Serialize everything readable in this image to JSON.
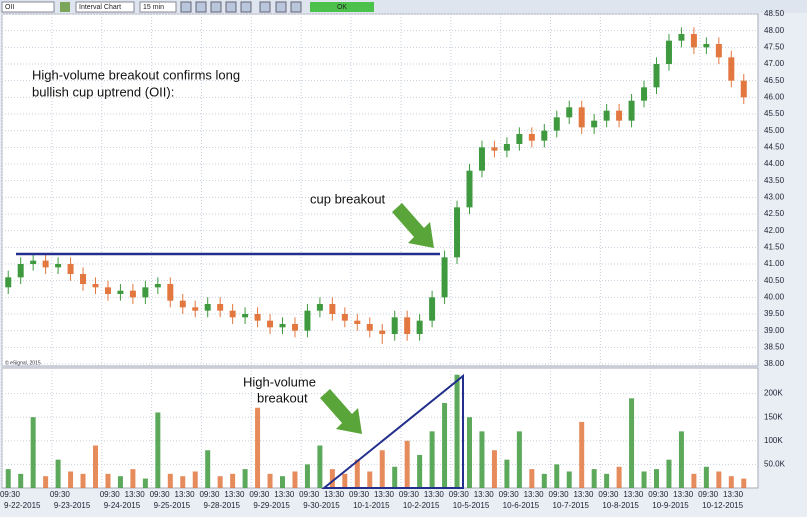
{
  "toolbar": {
    "symbol": "OII",
    "chart_kind": "Interval Chart",
    "interval": "15 min",
    "ok": "OK"
  },
  "chart_data": {
    "type": "candlestick",
    "source": "© eSignal, 2015",
    "annotations": [
      {
        "lines": [
          "High-volume breakout confirms long",
          "bullish cup uptrend (OII):"
        ]
      },
      {
        "lines": [
          "cup breakout"
        ]
      },
      {
        "lines": [
          "High-volume",
          "breakout"
        ]
      }
    ],
    "dates": [
      "9-22-2015",
      "9-23-2015",
      "9-24-2015",
      "9-25-2015",
      "9-28-2015",
      "9-29-2015",
      "9-30-2015",
      "10-1-2015",
      "10-2-2015",
      "10-5-2015",
      "10-6-2015",
      "10-7-2015",
      "10-8-2015",
      "10-9-2015",
      "10-12-2015"
    ],
    "times": [
      "09:30",
      null,
      "09:30",
      null,
      "09:30",
      "13:30",
      "09:30",
      "13:30",
      "09:30",
      "13:30",
      "09:30",
      "13:30",
      "09:30",
      "13:30",
      "09:30",
      "13:30",
      "09:30",
      "13:30",
      "09:30",
      "13:30",
      "09:30",
      "13:30",
      "09:30",
      "13:30",
      "09:30",
      "13:30",
      "09:30",
      "13:30",
      "09:30",
      "13:30"
    ],
    "open": [
      40.3,
      40.6,
      41.0,
      41.1,
      40.9,
      41.0,
      40.7,
      40.4,
      40.3,
      40.1,
      40.2,
      40.0,
      40.3,
      40.4,
      39.9,
      39.7,
      39.6,
      39.8,
      39.6,
      39.4,
      39.5,
      39.3,
      39.1,
      39.2,
      39.0,
      39.6,
      39.8,
      39.5,
      39.3,
      39.2,
      39.0,
      38.9,
      39.4,
      38.9,
      39.3,
      40.0,
      41.2,
      42.7,
      43.8,
      44.5,
      44.4,
      44.6,
      44.9,
      44.7,
      45.0,
      45.4,
      45.7,
      45.1,
      45.3,
      45.6,
      45.3,
      45.9,
      46.3,
      47.0,
      47.7,
      47.9,
      47.5,
      47.6,
      47.2,
      46.5
    ],
    "high": [
      40.8,
      41.2,
      41.3,
      41.3,
      41.2,
      41.2,
      40.9,
      40.6,
      40.5,
      40.4,
      40.4,
      40.5,
      40.6,
      40.6,
      40.1,
      39.9,
      40.0,
      40.0,
      39.8,
      39.7,
      39.7,
      39.5,
      39.4,
      39.4,
      39.8,
      40.0,
      40.0,
      39.7,
      39.5,
      39.4,
      39.2,
      39.6,
      39.6,
      39.5,
      40.2,
      41.4,
      42.9,
      44.0,
      44.7,
      44.7,
      44.8,
      45.1,
      45.1,
      45.2,
      45.6,
      45.9,
      45.9,
      45.5,
      45.8,
      45.8,
      46.1,
      46.5,
      47.2,
      47.9,
      48.1,
      48.1,
      47.8,
      47.8,
      47.4,
      46.7
    ],
    "low": [
      40.1,
      40.4,
      40.8,
      40.7,
      40.7,
      40.5,
      40.2,
      40.1,
      39.9,
      39.9,
      39.8,
      39.8,
      40.1,
      39.7,
      39.5,
      39.4,
      39.4,
      39.4,
      39.2,
      39.2,
      39.1,
      38.9,
      38.9,
      38.8,
      38.8,
      39.4,
      39.3,
      39.1,
      39.0,
      38.8,
      38.6,
      38.7,
      38.7,
      38.7,
      39.1,
      39.8,
      41.0,
      42.5,
      43.6,
      44.2,
      44.2,
      44.4,
      44.5,
      44.5,
      44.8,
      45.2,
      44.9,
      44.9,
      45.1,
      45.1,
      45.1,
      45.7,
      46.1,
      46.8,
      47.5,
      47.3,
      47.3,
      47.0,
      46.3,
      45.8
    ],
    "close": [
      40.6,
      41.0,
      41.1,
      40.9,
      41.0,
      40.7,
      40.4,
      40.3,
      40.1,
      40.2,
      40.0,
      40.3,
      40.4,
      39.9,
      39.7,
      39.6,
      39.8,
      39.6,
      39.4,
      39.5,
      39.3,
      39.1,
      39.2,
      39.0,
      39.6,
      39.8,
      39.5,
      39.3,
      39.2,
      39.0,
      38.9,
      39.4,
      38.9,
      39.3,
      40.0,
      41.2,
      42.7,
      43.8,
      44.5,
      44.4,
      44.6,
      44.9,
      44.7,
      45.0,
      45.4,
      45.7,
      45.1,
      45.3,
      45.6,
      45.3,
      45.9,
      46.3,
      47.0,
      47.7,
      47.9,
      47.5,
      47.6,
      47.2,
      46.5,
      46.0
    ],
    "volume": [
      40000,
      30000,
      150000,
      25000,
      60000,
      35000,
      30000,
      90000,
      30000,
      25000,
      40000,
      20000,
      160000,
      30000,
      25000,
      35000,
      80000,
      25000,
      30000,
      40000,
      170000,
      30000,
      25000,
      35000,
      50000,
      90000,
      40000,
      30000,
      60000,
      35000,
      80000,
      45000,
      100000,
      70000,
      120000,
      180000,
      240000,
      150000,
      120000,
      80000,
      60000,
      120000,
      40000,
      30000,
      50000,
      35000,
      140000,
      40000,
      30000,
      45000,
      190000,
      35000,
      40000,
      60000,
      120000,
      30000,
      45000,
      35000,
      25000,
      20000
    ],
    "resistance": 41.3,
    "up_color": "#3f9a3f",
    "down_color": "#e2773f",
    "line_color": "#232f8c",
    "ylim": [
      38,
      48.5
    ],
    "yticks": [
      {
        "value": 38,
        "label": "38.00"
      },
      {
        "value": 38.5,
        "label": "38.50"
      },
      {
        "value": 39,
        "label": "39.00"
      },
      {
        "value": 39.5,
        "label": "39.50"
      },
      {
        "value": 40,
        "label": "40.00"
      },
      {
        "value": 40.5,
        "label": "40.50"
      },
      {
        "value": 41,
        "label": "41.00"
      },
      {
        "value": 41.5,
        "label": "41.50"
      },
      {
        "value": 42,
        "label": "42.00"
      },
      {
        "value": 42.5,
        "label": "42.50"
      },
      {
        "value": 43,
        "label": "43.00"
      },
      {
        "value": 43.5,
        "label": "43.50"
      },
      {
        "value": 44,
        "label": "44.00"
      },
      {
        "value": 44.5,
        "label": "44.50"
      },
      {
        "value": 45,
        "label": "45.00"
      },
      {
        "value": 45.5,
        "label": "45.50"
      },
      {
        "value": 46,
        "label": "46.00"
      },
      {
        "value": 46.5,
        "label": "46.50"
      },
      {
        "value": 47,
        "label": "47.00"
      },
      {
        "value": 47.5,
        "label": "47.50"
      },
      {
        "value": 48,
        "label": "48.00"
      },
      {
        "value": 48.5,
        "label": "48.50"
      }
    ],
    "y2lim": [
      0,
      250000
    ],
    "y2ticks": [
      {
        "value": 50000,
        "label": "50.0K"
      },
      {
        "value": 100000,
        "label": "100K"
      },
      {
        "value": 150000,
        "label": "150K"
      },
      {
        "value": 200000,
        "label": "200K"
      }
    ],
    "grid": true
  }
}
